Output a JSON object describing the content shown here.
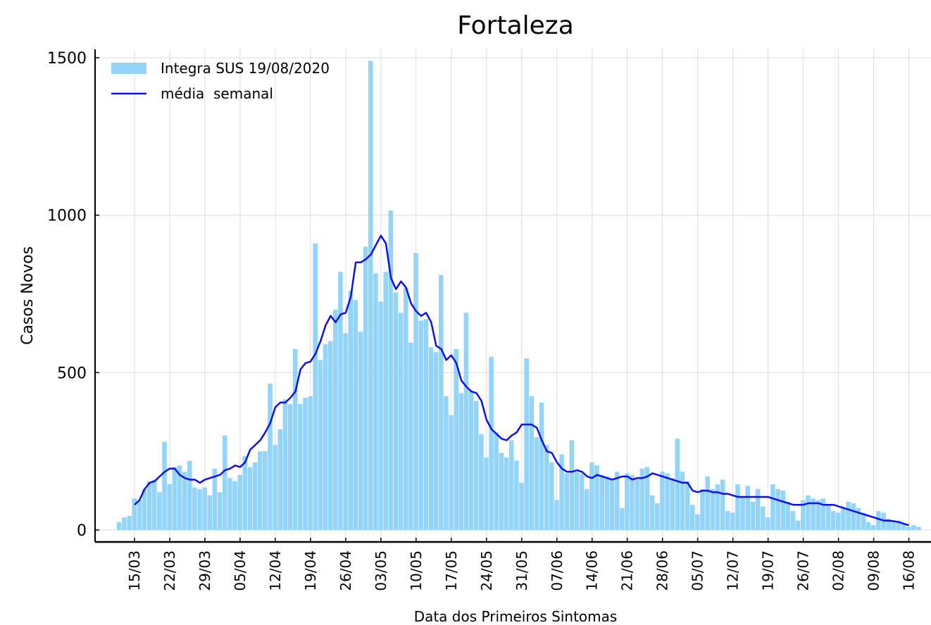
{
  "chart_data": {
    "type": "bar",
    "title": "Fortaleza",
    "xlabel": "Data dos Primeiros Sintomas",
    "ylabel": "Casos Novos",
    "categories": [
      null,
      null,
      null,
      "15/03",
      null,
      null,
      null,
      null,
      null,
      null,
      "22/03",
      null,
      null,
      null,
      null,
      null,
      null,
      "29/03",
      null,
      null,
      null,
      null,
      null,
      null,
      "05/04",
      null,
      null,
      null,
      null,
      null,
      null,
      "12/04",
      null,
      null,
      null,
      null,
      null,
      null,
      "19/04",
      null,
      null,
      null,
      null,
      null,
      null,
      "26/04",
      null,
      null,
      null,
      null,
      null,
      null,
      "03/05",
      null,
      null,
      null,
      null,
      null,
      null,
      "10/05",
      null,
      null,
      null,
      null,
      null,
      null,
      "17/05",
      null,
      null,
      null,
      null,
      null,
      null,
      "24/05",
      null,
      null,
      null,
      null,
      null,
      null,
      "31/05",
      null,
      null,
      null,
      null,
      null,
      null,
      "07/06",
      null,
      null,
      null,
      null,
      null,
      null,
      "14/06",
      null,
      null,
      null,
      null,
      null,
      null,
      "21/06",
      null,
      null,
      null,
      null,
      null,
      null,
      "28/06",
      null,
      null,
      null,
      null,
      null,
      null,
      "05/07",
      null,
      null,
      null,
      null,
      null,
      null,
      "12/07",
      null,
      null,
      null,
      null,
      null,
      null,
      "19/07",
      null,
      null,
      null,
      null,
      null,
      null,
      "26/07",
      null,
      null,
      null,
      null,
      null,
      null,
      "02/08",
      null,
      null,
      null,
      null,
      null,
      null,
      "09/08",
      null,
      null,
      null,
      null,
      null,
      null,
      "16/08",
      null,
      null
    ],
    "series": [
      {
        "name": "Integra SUS 19/08/2020",
        "type": "bar",
        "color": "#93d4f8",
        "values": [
          25,
          40,
          45,
          100,
          95,
          130,
          155,
          160,
          120,
          280,
          145,
          200,
          205,
          185,
          220,
          135,
          130,
          135,
          110,
          195,
          120,
          300,
          165,
          155,
          175,
          235,
          200,
          215,
          250,
          250,
          465,
          270,
          320,
          415,
          400,
          575,
          400,
          420,
          425,
          910,
          540,
          590,
          600,
          700,
          820,
          625,
          760,
          730,
          630,
          900,
          1490,
          815,
          725,
          820,
          1015,
          755,
          690,
          770,
          595,
          880,
          665,
          670,
          580,
          565,
          810,
          425,
          365,
          575,
          435,
          690,
          440,
          410,
          305,
          230,
          550,
          310,
          245,
          230,
          285,
          220,
          150,
          545,
          425,
          295,
          405,
          270,
          215,
          95,
          240,
          180,
          285,
          185,
          180,
          130,
          215,
          205,
          175,
          170,
          160,
          185,
          70,
          180,
          175,
          160,
          195,
          200,
          110,
          85,
          185,
          180,
          165,
          290,
          185,
          155,
          80,
          50,
          130,
          170,
          130,
          145,
          160,
          60,
          55,
          145,
          105,
          140,
          90,
          130,
          75,
          40,
          145,
          130,
          125,
          90,
          60,
          30,
          95,
          110,
          100,
          95,
          100,
          80,
          60,
          55,
          70,
          90,
          85,
          70,
          55,
          25,
          15,
          60,
          55,
          35,
          30,
          30,
          20,
          10,
          15,
          10
        ]
      },
      {
        "name": "média  semanal",
        "type": "line",
        "color": "#1010e8",
        "values": [
          null,
          null,
          null,
          80,
          95,
          130,
          150,
          155,
          170,
          185,
          195,
          195,
          175,
          165,
          160,
          160,
          150,
          160,
          165,
          170,
          175,
          190,
          195,
          205,
          200,
          215,
          255,
          270,
          285,
          310,
          340,
          390,
          405,
          405,
          420,
          440,
          510,
          530,
          535,
          560,
          600,
          650,
          680,
          660,
          685,
          690,
          740,
          850,
          850,
          860,
          875,
          905,
          935,
          910,
          800,
          765,
          790,
          770,
          720,
          695,
          680,
          690,
          660,
          585,
          575,
          540,
          555,
          530,
          475,
          455,
          440,
          435,
          410,
          350,
          320,
          305,
          290,
          285,
          300,
          310,
          335,
          335,
          335,
          325,
          285,
          250,
          245,
          215,
          195,
          185,
          185,
          190,
          185,
          170,
          165,
          175,
          170,
          165,
          160,
          165,
          170,
          170,
          160,
          165,
          165,
          170,
          180,
          175,
          170,
          165,
          160,
          155,
          150,
          150,
          125,
          120,
          125,
          125,
          120,
          120,
          115,
          115,
          110,
          105,
          105,
          105,
          105,
          105,
          105,
          105,
          100,
          95,
          90,
          85,
          80,
          80,
          80,
          85,
          85,
          85,
          80,
          80,
          80,
          75,
          70,
          65,
          60,
          55,
          50,
          45,
          40,
          35,
          30,
          30,
          28,
          25,
          20,
          15,
          null,
          null
        ]
      }
    ],
    "ylim": [
      -38,
      1527
    ],
    "yticks": [
      0,
      500,
      1000,
      1500
    ],
    "grid": true,
    "legend": "upper left"
  }
}
